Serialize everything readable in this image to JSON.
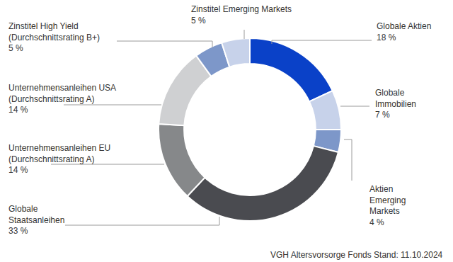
{
  "chart_data": {
    "type": "pie",
    "categories": [
      "Globale Aktien",
      "Globale\nImmobilien",
      "Aktien\nEmerging\nMarkets",
      "Globale\nStaatsanleihen",
      "Unternehmensanleihen EU\n(Durchschnittsrating A)",
      "Unternehmensanleihen USA\n(Durchschnittsrating A)",
      "Zinstitel High Yield\n(Durchschnittsrating B+)",
      "Zinstitel Emerging Markets"
    ],
    "values": [
      18,
      7,
      4,
      33,
      14,
      14,
      5,
      5
    ],
    "value_labels": [
      "18 %",
      "7 %",
      "4 %",
      "33 %",
      "14 %",
      "14 %",
      "5 %",
      "5 %"
    ],
    "colors": [
      "#0a41c8",
      "#c7d2ea",
      "#7d97c9",
      "#4a4b50",
      "#86888a",
      "#cfd0d2",
      "#7d97c9",
      "#c7d2ea"
    ],
    "data_labels": true,
    "source": "VGH Altersvorsorge Fonds Stand: 11.10.2024"
  }
}
